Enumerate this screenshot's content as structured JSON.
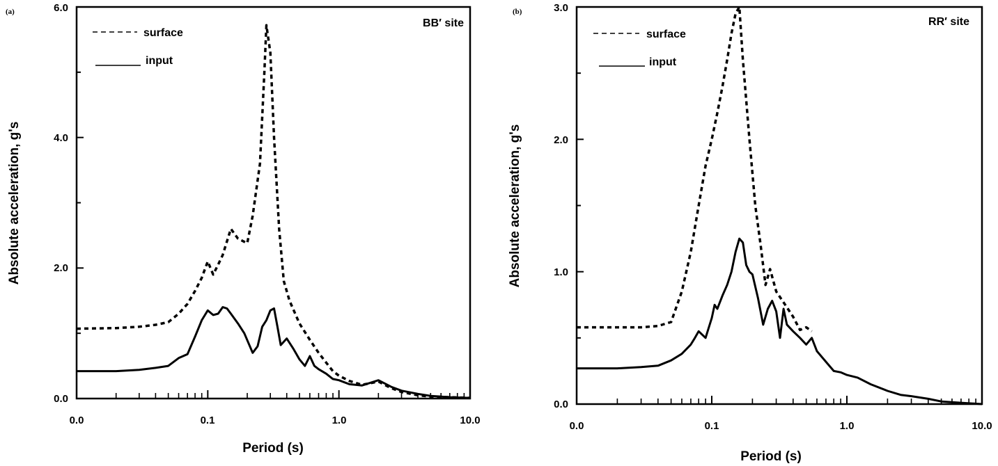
{
  "chart_data": [
    {
      "type": "line",
      "panel_label": "(a)",
      "site_label": "BB′ site",
      "xlabel": "Period (s)",
      "ylabel": "Absolute acceleration, g's",
      "x_scale": "log",
      "x_tick_labels": [
        "0.0",
        "0.1",
        "1.0",
        "10.0"
      ],
      "y_tick_labels": [
        "0.0",
        "2.0",
        "4.0",
        "6.0"
      ],
      "xlim": [
        0.01,
        10
      ],
      "ylim": [
        0,
        6
      ],
      "legend": [
        "surface",
        "input"
      ],
      "legend_position": "top-left",
      "series": [
        {
          "name": "surface",
          "style": "dashed",
          "x": [
            0.01,
            0.02,
            0.03,
            0.04,
            0.05,
            0.06,
            0.07,
            0.08,
            0.09,
            0.1,
            0.11,
            0.12,
            0.13,
            0.15,
            0.17,
            0.2,
            0.22,
            0.25,
            0.27,
            0.28,
            0.3,
            0.32,
            0.35,
            0.38,
            0.42,
            0.5,
            0.6,
            0.7,
            0.8,
            0.9,
            1.0,
            1.2,
            1.5,
            2.0,
            2.5,
            3.0,
            4.0,
            5.0,
            7.0,
            10.0
          ],
          "y": [
            1.07,
            1.08,
            1.1,
            1.13,
            1.17,
            1.3,
            1.45,
            1.65,
            1.85,
            2.1,
            1.9,
            2.05,
            2.2,
            2.6,
            2.45,
            2.38,
            2.8,
            3.6,
            5.0,
            5.72,
            5.3,
            4.0,
            2.6,
            1.8,
            1.5,
            1.15,
            0.9,
            0.7,
            0.55,
            0.42,
            0.35,
            0.27,
            0.21,
            0.26,
            0.16,
            0.1,
            0.05,
            0.03,
            0.02,
            0.01
          ]
        },
        {
          "name": "input",
          "style": "solid",
          "x": [
            0.01,
            0.02,
            0.03,
            0.04,
            0.05,
            0.06,
            0.07,
            0.08,
            0.09,
            0.1,
            0.11,
            0.12,
            0.13,
            0.14,
            0.15,
            0.17,
            0.19,
            0.22,
            0.24,
            0.26,
            0.28,
            0.3,
            0.32,
            0.34,
            0.36,
            0.4,
            0.45,
            0.5,
            0.55,
            0.6,
            0.65,
            0.7,
            0.8,
            0.9,
            1.0,
            1.2,
            1.5,
            2.0,
            2.5,
            3.0,
            4.0,
            5.0,
            7.0,
            10.0
          ],
          "y": [
            0.42,
            0.42,
            0.44,
            0.47,
            0.5,
            0.62,
            0.68,
            0.95,
            1.2,
            1.35,
            1.28,
            1.3,
            1.4,
            1.38,
            1.3,
            1.15,
            1.0,
            0.7,
            0.8,
            1.1,
            1.2,
            1.35,
            1.38,
            1.1,
            0.82,
            0.92,
            0.76,
            0.6,
            0.5,
            0.65,
            0.5,
            0.45,
            0.38,
            0.3,
            0.28,
            0.22,
            0.2,
            0.28,
            0.18,
            0.12,
            0.07,
            0.04,
            0.02,
            0.01
          ]
        }
      ]
    },
    {
      "type": "line",
      "panel_label": "(b)",
      "site_label": "RR′ site",
      "xlabel": "Period (s)",
      "ylabel": "Absolute acceleration, g's",
      "x_scale": "log",
      "x_tick_labels": [
        "0.0",
        "0.1",
        "1.0",
        "10.0"
      ],
      "y_tick_labels": [
        "0.0",
        "1.0",
        "2.0",
        "3.0"
      ],
      "xlim": [
        0.01,
        10
      ],
      "ylim": [
        0,
        3
      ],
      "legend": [
        "surface",
        "input"
      ],
      "legend_position": "top-left",
      "series": [
        {
          "name": "surface",
          "style": "dashed",
          "x": [
            0.01,
            0.02,
            0.03,
            0.04,
            0.05,
            0.06,
            0.07,
            0.08,
            0.09,
            0.1,
            0.11,
            0.12,
            0.13,
            0.14,
            0.15,
            0.16,
            0.17,
            0.19,
            0.21,
            0.23,
            0.25,
            0.27,
            0.3,
            0.35,
            0.4,
            0.45,
            0.5,
            0.55
          ],
          "y": [
            0.58,
            0.58,
            0.58,
            0.59,
            0.62,
            0.85,
            1.15,
            1.5,
            1.8,
            2.0,
            2.2,
            2.4,
            2.6,
            2.8,
            2.95,
            3.0,
            2.6,
            2.0,
            1.5,
            1.2,
            0.9,
            1.02,
            0.85,
            0.75,
            0.66,
            0.56,
            0.58,
            0.55
          ]
        },
        {
          "name": "input",
          "style": "solid",
          "x": [
            0.01,
            0.02,
            0.03,
            0.04,
            0.05,
            0.06,
            0.07,
            0.075,
            0.08,
            0.09,
            0.1,
            0.105,
            0.11,
            0.12,
            0.13,
            0.14,
            0.15,
            0.16,
            0.17,
            0.18,
            0.19,
            0.2,
            0.22,
            0.24,
            0.26,
            0.28,
            0.3,
            0.32,
            0.34,
            0.36,
            0.4,
            0.45,
            0.5,
            0.55,
            0.6,
            0.7,
            0.8,
            0.9,
            1.0,
            1.2,
            1.5,
            2.0,
            2.5,
            3.0,
            4.0,
            5.0,
            7.0,
            10.0
          ],
          "y": [
            0.27,
            0.27,
            0.28,
            0.29,
            0.33,
            0.38,
            0.45,
            0.5,
            0.55,
            0.5,
            0.65,
            0.75,
            0.72,
            0.82,
            0.9,
            1.0,
            1.15,
            1.25,
            1.22,
            1.05,
            1.0,
            0.98,
            0.8,
            0.6,
            0.72,
            0.78,
            0.7,
            0.5,
            0.72,
            0.6,
            0.55,
            0.5,
            0.45,
            0.5,
            0.4,
            0.32,
            0.25,
            0.24,
            0.22,
            0.2,
            0.15,
            0.1,
            0.07,
            0.06,
            0.04,
            0.02,
            0.01,
            0.0
          ]
        }
      ]
    }
  ]
}
